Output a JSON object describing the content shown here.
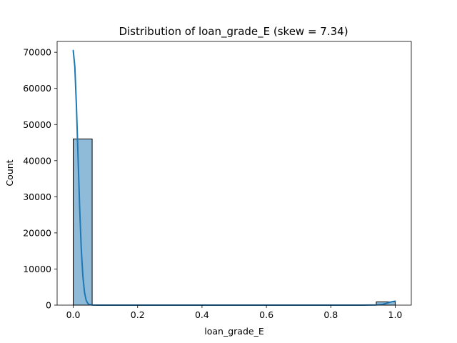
{
  "chart_data": {
    "type": "bar",
    "title": "Distribution of loan_grade_E (skew = 7.34)",
    "xlabel": "loan_grade_E",
    "ylabel": "Count",
    "xlim": [
      -0.05,
      1.05
    ],
    "ylim": [
      0,
      73000
    ],
    "xticks": [
      0.0,
      0.2,
      0.4,
      0.6,
      0.8,
      1.0
    ],
    "xtick_labels": [
      "0.0",
      "0.2",
      "0.4",
      "0.6",
      "0.8",
      "1.0"
    ],
    "yticks": [
      0,
      10000,
      20000,
      30000,
      40000,
      50000,
      60000,
      70000
    ],
    "ytick_labels": [
      "0",
      "10000",
      "20000",
      "30000",
      "40000",
      "50000",
      "60000",
      "70000"
    ],
    "bin_width": 0.0588,
    "bins": [
      {
        "x0": 0.0,
        "x1": 0.0588,
        "count": 46000
      },
      {
        "x0": 0.9412,
        "x1": 1.0,
        "count": 900
      }
    ],
    "kde": {
      "x": [
        0.0,
        0.005,
        0.01,
        0.015,
        0.02,
        0.025,
        0.03,
        0.035,
        0.04,
        0.045,
        0.05,
        0.06,
        0.08,
        0.1,
        0.2,
        0.4,
        0.6,
        0.8,
        0.9,
        0.94,
        0.96,
        0.97,
        0.98,
        0.99,
        1.0
      ],
      "y": [
        70500,
        66000,
        55000,
        41000,
        27000,
        15500,
        8000,
        3600,
        1400,
        500,
        150,
        20,
        0,
        0,
        0,
        0,
        0,
        0,
        0,
        40,
        200,
        420,
        700,
        950,
        1100
      ]
    },
    "colors": {
      "bar_fill": "#1f77b4",
      "bar_fill_opacity": 0.5,
      "bar_edge": "#000000",
      "kde_line": "#1f77b4"
    },
    "grid": false,
    "legend": "none"
  }
}
